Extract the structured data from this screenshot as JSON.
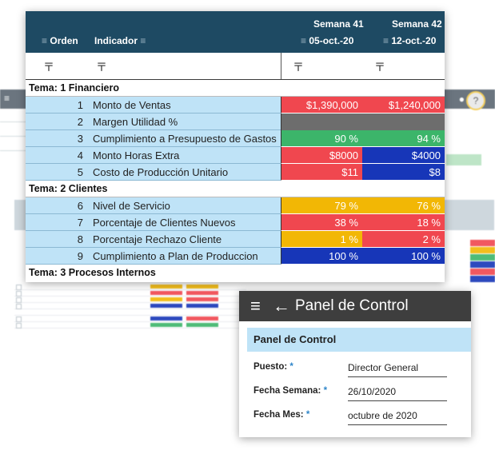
{
  "grid": {
    "columns": {
      "orden": "Orden",
      "indicador": "Indicador",
      "week1_label": "Semana 41",
      "week1_date": "05-oct.-20",
      "week2_label": "Semana 42",
      "week2_date": "12-oct.-20"
    },
    "sections": [
      {
        "title": "Tema: 1 Financiero",
        "rows": [
          {
            "order": "1",
            "name": "Monto de Ventas",
            "w41": "$1,390,000",
            "w42": "$1,240,000",
            "c41": "#f0474f",
            "c42": "#f0474f"
          },
          {
            "order": "2",
            "name": "Margen Utilidad %",
            "w41": "",
            "w42": "",
            "c41": "#6d6d6d",
            "c42": "#6d6d6d"
          },
          {
            "order": "3",
            "name": "Cumplimiento a Presupuesto de Gastos",
            "w41": "90 %",
            "w42": "94 %",
            "c41": "#3cb56a",
            "c42": "#3cb56a"
          },
          {
            "order": "4",
            "name": "Monto Horas Extra",
            "w41": "$8000",
            "w42": "$4000",
            "c41": "#f0474f",
            "c42": "#1736b8"
          },
          {
            "order": "5",
            "name": "Costo de Producción Unitario",
            "w41": "$11",
            "w42": "$8",
            "c41": "#f0474f",
            "c42": "#1736b8"
          }
        ]
      },
      {
        "title": "Tema: 2 Clientes",
        "rows": [
          {
            "order": "6",
            "name": "Nivel de Servicio",
            "w41": "79 %",
            "w42": "76 %",
            "c41": "#f2b705",
            "c42": "#f2b705"
          },
          {
            "order": "7",
            "name": "Porcentaje de Clientes Nuevos",
            "w41": "38 %",
            "w42": "18 %",
            "c41": "#f0474f",
            "c42": "#f0474f"
          },
          {
            "order": "8",
            "name": "Porcentaje Rechazo Cliente",
            "w41": "1 %",
            "w42": "2 %",
            "c41": "#f2b705",
            "c42": "#f0474f"
          },
          {
            "order": "9",
            "name": "Cumplimiento a Plan de Produccion",
            "w41": "100 %",
            "w42": "100 %",
            "c41": "#1736b8",
            "c42": "#1736b8"
          }
        ]
      },
      {
        "title": "Tema: 3 Procesos Internos",
        "rows": []
      }
    ]
  },
  "panel": {
    "title": "Panel de Control",
    "subtitle": "Panel de Control",
    "fields": [
      {
        "label": "Puesto:",
        "value": "Director General"
      },
      {
        "label": "Fecha Semana:",
        "value": "26/10/2020"
      },
      {
        "label": "Fecha Mes:",
        "value": "octubre de 2020"
      }
    ],
    "required_mark": "*"
  },
  "icons": {
    "filter": "filter-icon",
    "menu": "menu-icon",
    "back": "back-arrow-icon"
  }
}
